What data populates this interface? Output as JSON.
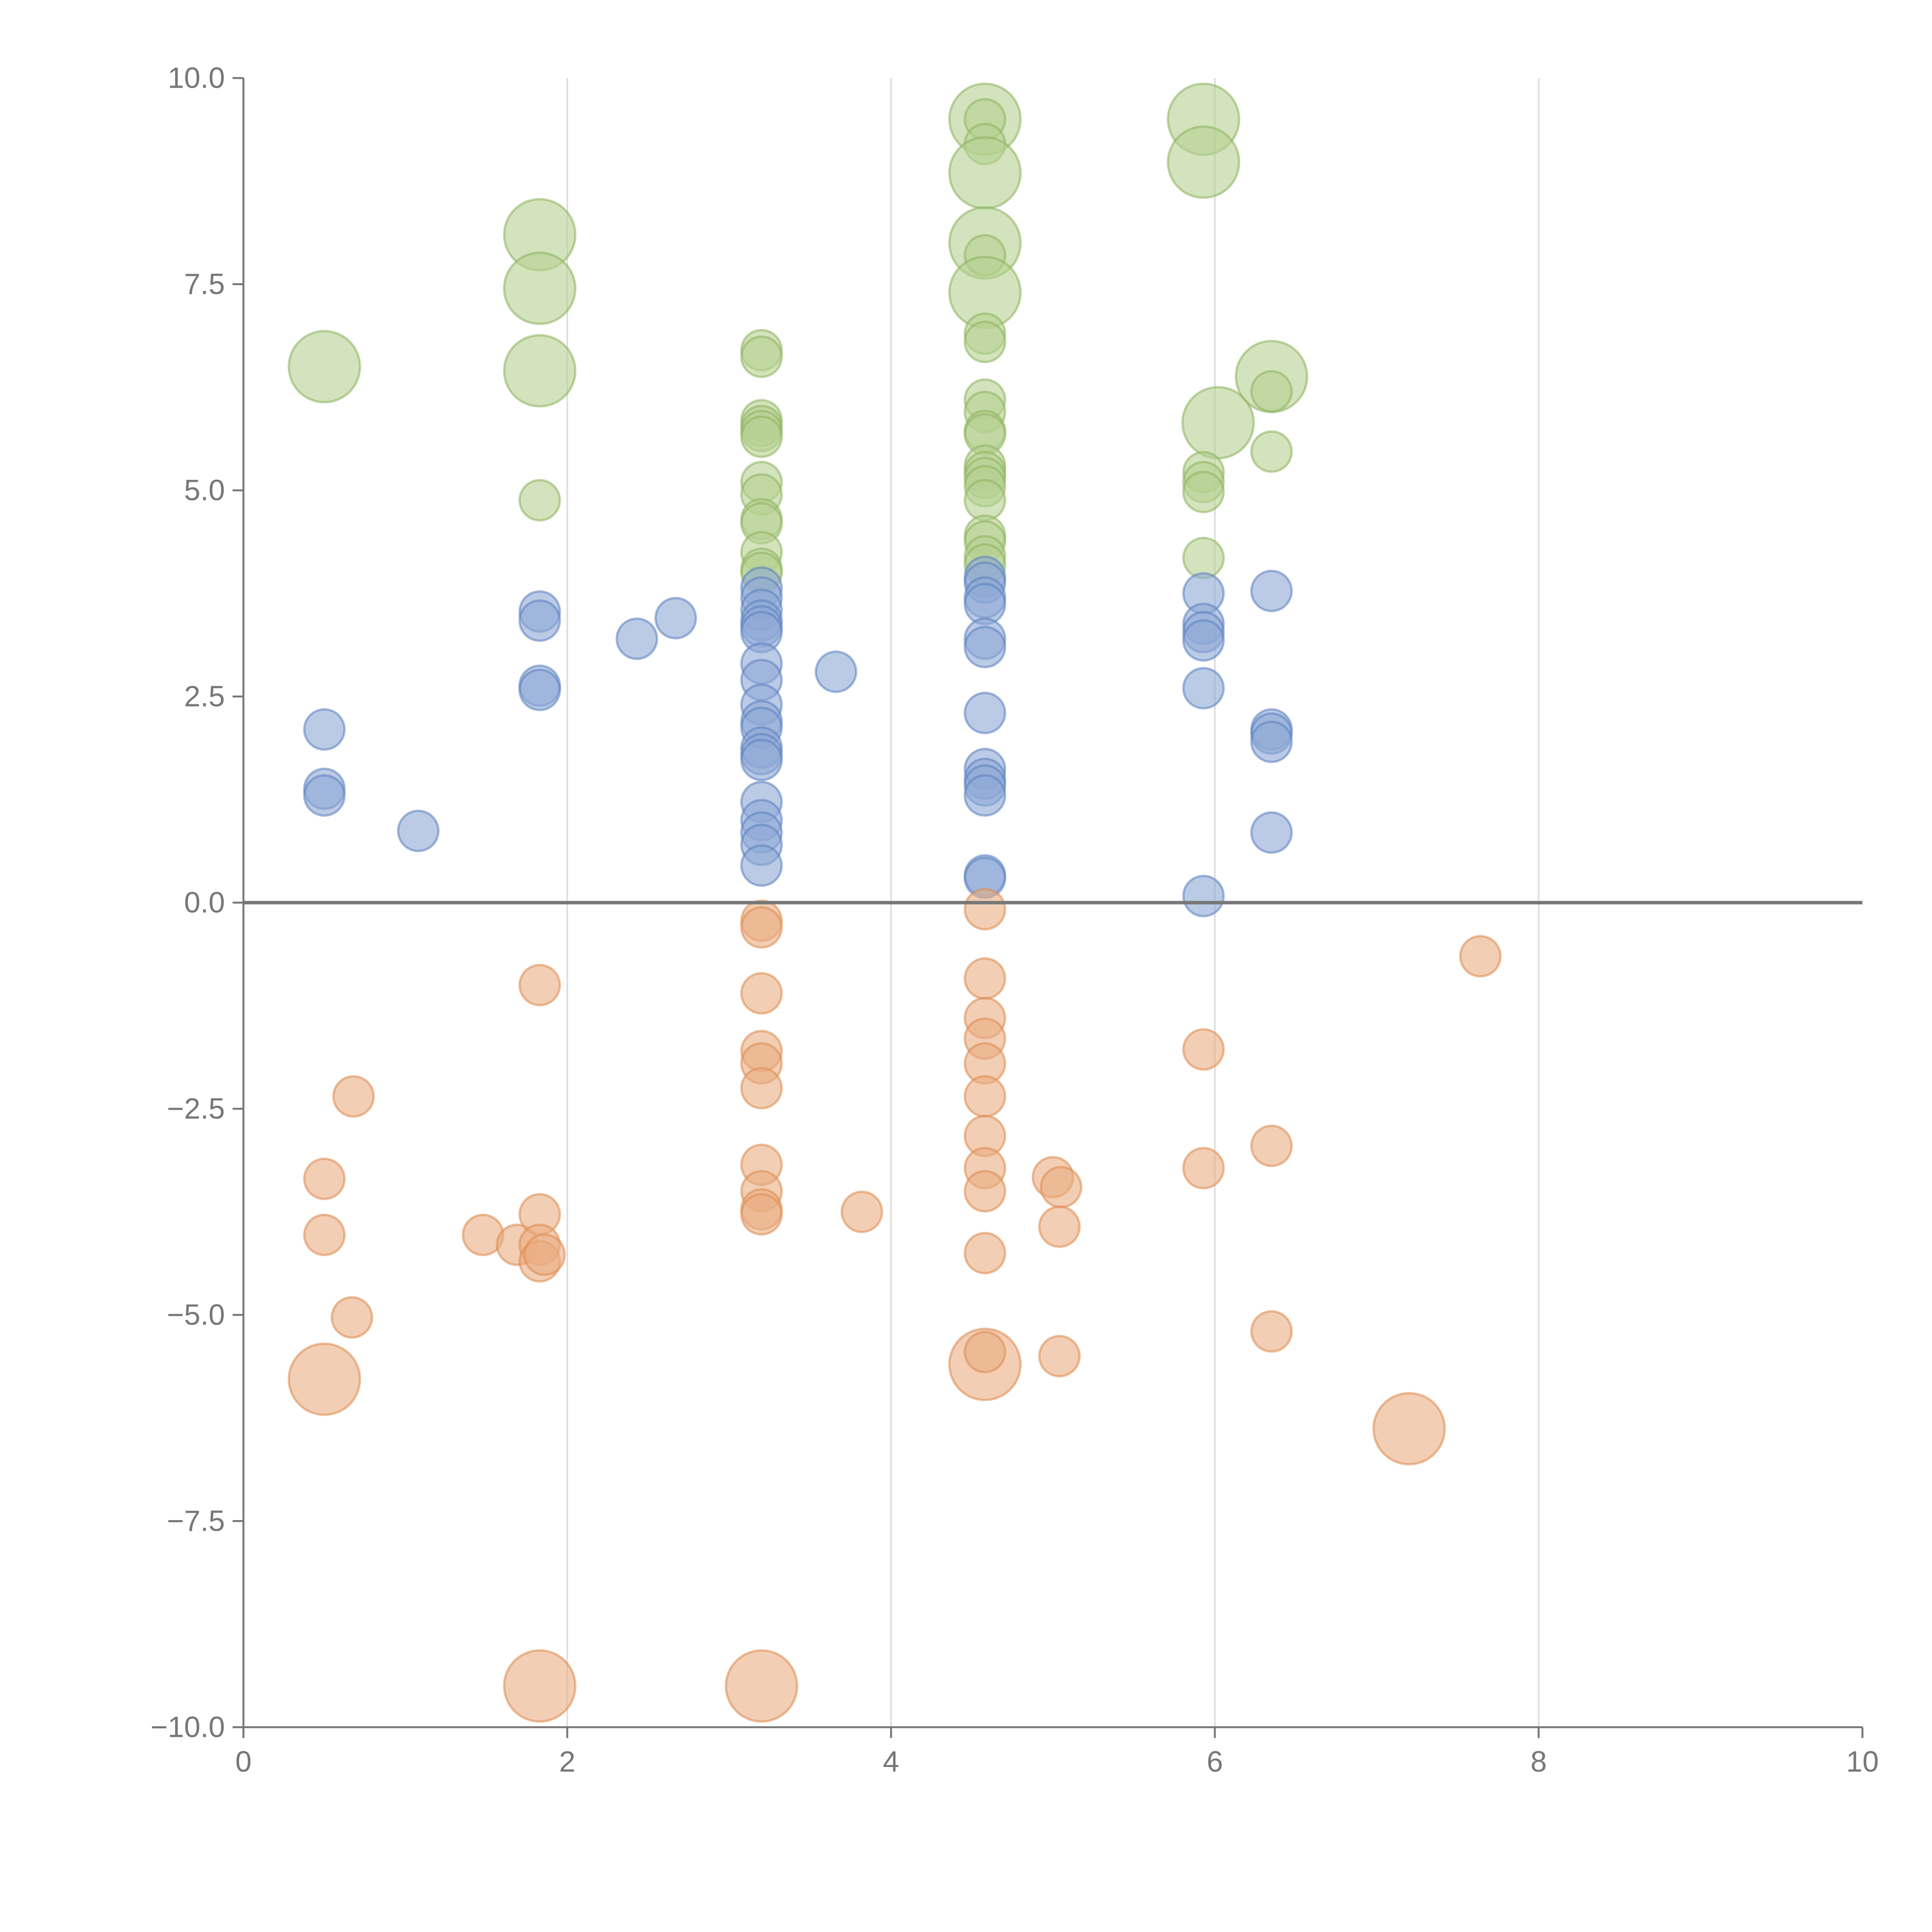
{
  "chart_data": {
    "type": "scatter",
    "title": "",
    "xlabel": "",
    "ylabel": "",
    "xlim": [
      0,
      10
    ],
    "ylim": [
      -10,
      10
    ],
    "x_ticks": [
      0,
      2,
      4,
      6,
      8,
      10
    ],
    "x_tick_labels": [
      "0",
      "2",
      "4",
      "6",
      "8",
      "10"
    ],
    "y_ticks": [
      10,
      7.5,
      5,
      2.5,
      0,
      -2.5,
      -5,
      -7.5,
      -10
    ],
    "y_tick_labels": [
      "10.0",
      "7.5",
      "5.0",
      "2.5",
      "0.0",
      "−2.5",
      "−5.0",
      "−7.5",
      "−10.0"
    ],
    "grid": "vertical",
    "legend": "none",
    "colors": {
      "green_fill": "#b5d191",
      "green_stroke": "#8db35c",
      "blue_fill": "#8ea8d6",
      "blue_stroke": "#5b80c0",
      "orange_fill": "#eaae82",
      "orange_stroke": "#dc8a4f",
      "axis": "#777777",
      "grid": "#dddddd"
    },
    "series": [
      {
        "name": "green",
        "color": "#b5d191",
        "points": [
          [
            0.5,
            6.5,
            1
          ],
          [
            1.83,
            8.1,
            1
          ],
          [
            1.83,
            7.45,
            1
          ],
          [
            1.83,
            6.45,
            1
          ],
          [
            1.83,
            4.88,
            0
          ],
          [
            3.2,
            6.7,
            0
          ],
          [
            3.2,
            6.62,
            0
          ],
          [
            3.2,
            5.85,
            0
          ],
          [
            3.2,
            5.78,
            0
          ],
          [
            3.2,
            5.72,
            0
          ],
          [
            3.2,
            5.65,
            0
          ],
          [
            3.2,
            5.1,
            0
          ],
          [
            3.2,
            4.95,
            0
          ],
          [
            3.2,
            4.65,
            0
          ],
          [
            3.2,
            4.6,
            0
          ],
          [
            3.2,
            4.25,
            0
          ],
          [
            3.2,
            4.05,
            0
          ],
          [
            3.2,
            4.0,
            0
          ],
          [
            4.58,
            9.5,
            1
          ],
          [
            4.58,
            9.5,
            0
          ],
          [
            4.58,
            9.2,
            0
          ],
          [
            4.58,
            8.85,
            1
          ],
          [
            4.58,
            8.0,
            1
          ],
          [
            4.58,
            7.85,
            0
          ],
          [
            4.58,
            7.4,
            1
          ],
          [
            4.58,
            6.9,
            0
          ],
          [
            4.58,
            6.8,
            0
          ],
          [
            4.58,
            6.1,
            0
          ],
          [
            4.58,
            5.95,
            0
          ],
          [
            4.58,
            5.72,
            0
          ],
          [
            4.58,
            5.68,
            0
          ],
          [
            4.58,
            5.3,
            0
          ],
          [
            4.58,
            5.22,
            0
          ],
          [
            4.58,
            5.15,
            0
          ],
          [
            4.58,
            5.05,
            0
          ],
          [
            4.58,
            4.88,
            0
          ],
          [
            4.58,
            4.45,
            0
          ],
          [
            4.58,
            4.38,
            0
          ],
          [
            4.58,
            4.2,
            0
          ],
          [
            4.58,
            4.1,
            0
          ],
          [
            5.93,
            9.5,
            1
          ],
          [
            5.93,
            8.98,
            1
          ],
          [
            6.02,
            5.82,
            1
          ],
          [
            5.93,
            5.22,
            0
          ],
          [
            5.93,
            5.1,
            0
          ],
          [
            5.93,
            4.98,
            0
          ],
          [
            5.93,
            4.18,
            0
          ],
          [
            6.35,
            6.38,
            1
          ],
          [
            6.35,
            6.2,
            0
          ],
          [
            6.35,
            5.47,
            0
          ]
        ]
      },
      {
        "name": "blue",
        "color": "#8ea8d6",
        "points": [
          [
            0.5,
            2.1,
            0
          ],
          [
            0.5,
            1.38,
            0
          ],
          [
            0.5,
            1.3,
            0
          ],
          [
            1.08,
            0.87,
            0
          ],
          [
            1.83,
            3.53,
            0
          ],
          [
            1.83,
            3.42,
            0
          ],
          [
            1.83,
            2.63,
            0
          ],
          [
            1.83,
            2.58,
            0
          ],
          [
            2.43,
            3.2,
            0
          ],
          [
            2.67,
            3.45,
            0
          ],
          [
            3.2,
            3.82,
            0
          ],
          [
            3.2,
            3.7,
            0
          ],
          [
            3.2,
            3.55,
            0
          ],
          [
            3.2,
            3.42,
            0
          ],
          [
            3.2,
            3.35,
            0
          ],
          [
            3.2,
            3.28,
            0
          ],
          [
            3.2,
            2.9,
            0
          ],
          [
            3.2,
            2.7,
            0
          ],
          [
            3.2,
            2.4,
            0
          ],
          [
            3.2,
            2.2,
            0
          ],
          [
            3.2,
            2.12,
            0
          ],
          [
            3.2,
            1.88,
            0
          ],
          [
            3.2,
            1.8,
            0
          ],
          [
            3.2,
            1.73,
            0
          ],
          [
            3.2,
            1.22,
            0
          ],
          [
            3.2,
            1.0,
            0
          ],
          [
            3.2,
            0.85,
            0
          ],
          [
            3.2,
            0.7,
            0
          ],
          [
            3.2,
            0.45,
            0
          ],
          [
            3.66,
            2.8,
            0
          ],
          [
            4.58,
            3.95,
            0
          ],
          [
            4.58,
            3.88,
            0
          ],
          [
            4.58,
            3.7,
            0
          ],
          [
            4.58,
            3.62,
            0
          ],
          [
            4.58,
            3.2,
            0
          ],
          [
            4.58,
            3.1,
            0
          ],
          [
            4.58,
            2.3,
            0
          ],
          [
            4.58,
            1.62,
            0
          ],
          [
            4.58,
            1.5,
            0
          ],
          [
            4.58,
            1.42,
            0
          ],
          [
            4.58,
            1.3,
            0
          ],
          [
            4.58,
            0.33,
            0
          ],
          [
            4.58,
            0.3,
            0
          ],
          [
            5.93,
            3.75,
            0
          ],
          [
            5.93,
            3.38,
            0
          ],
          [
            5.93,
            3.28,
            0
          ],
          [
            5.93,
            3.18,
            0
          ],
          [
            5.93,
            2.6,
            0
          ],
          [
            5.93,
            0.08,
            0
          ],
          [
            6.35,
            3.78,
            0
          ],
          [
            6.35,
            2.1,
            0
          ],
          [
            6.35,
            2.05,
            0
          ],
          [
            6.35,
            1.95,
            0
          ],
          [
            6.35,
            0.85,
            0
          ]
        ]
      },
      {
        "name": "orange",
        "color": "#eaae82",
        "points": [
          [
            0.5,
            -3.35,
            0
          ],
          [
            0.5,
            -4.03,
            0
          ],
          [
            0.5,
            -5.78,
            1
          ],
          [
            0.68,
            -2.35,
            0
          ],
          [
            0.67,
            -5.03,
            0
          ],
          [
            1.48,
            -4.03,
            0
          ],
          [
            1.69,
            -4.15,
            0
          ],
          [
            1.83,
            -1.0,
            0
          ],
          [
            1.83,
            -3.78,
            0
          ],
          [
            1.83,
            -4.15,
            0
          ],
          [
            1.83,
            -4.35,
            0
          ],
          [
            1.86,
            -4.27,
            0
          ],
          [
            1.83,
            -9.5,
            1
          ],
          [
            3.2,
            -0.22,
            0
          ],
          [
            3.2,
            -0.3,
            0
          ],
          [
            3.2,
            -1.1,
            0
          ],
          [
            3.2,
            -1.8,
            0
          ],
          [
            3.2,
            -1.95,
            0
          ],
          [
            3.2,
            -2.25,
            0
          ],
          [
            3.2,
            -3.18,
            0
          ],
          [
            3.2,
            -3.5,
            0
          ],
          [
            3.2,
            -3.72,
            0
          ],
          [
            3.2,
            -3.78,
            0
          ],
          [
            3.2,
            -9.5,
            1
          ],
          [
            3.82,
            -3.75,
            0
          ],
          [
            4.58,
            -0.08,
            0
          ],
          [
            4.58,
            -0.92,
            0
          ],
          [
            4.58,
            -1.4,
            0
          ],
          [
            4.58,
            -1.65,
            0
          ],
          [
            4.58,
            -1.95,
            0
          ],
          [
            4.58,
            -2.35,
            0
          ],
          [
            4.58,
            -2.83,
            0
          ],
          [
            4.58,
            -3.22,
            0
          ],
          [
            4.58,
            -3.5,
            0
          ],
          [
            4.58,
            -4.25,
            0
          ],
          [
            4.58,
            -5.6,
            1
          ],
          [
            4.58,
            -5.45,
            0
          ],
          [
            5.0,
            -3.33,
            0
          ],
          [
            5.05,
            -3.45,
            0
          ],
          [
            5.04,
            -3.93,
            0
          ],
          [
            5.04,
            -5.5,
            0
          ],
          [
            5.93,
            -1.78,
            0
          ],
          [
            5.93,
            -3.22,
            0
          ],
          [
            6.35,
            -2.95,
            0
          ],
          [
            6.35,
            -5.2,
            0
          ],
          [
            7.2,
            -6.38,
            1
          ],
          [
            7.64,
            -0.65,
            0
          ]
        ]
      }
    ]
  }
}
